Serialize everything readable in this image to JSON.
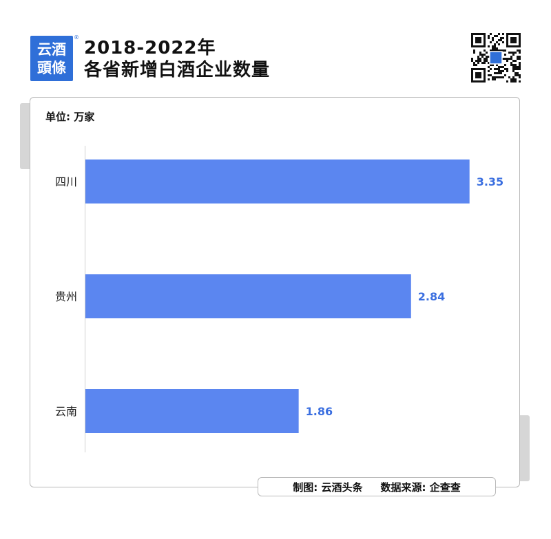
{
  "brand": {
    "logo_line1": "云酒",
    "logo_line2": "頭條",
    "logo_mark": "®",
    "accent_color": "#2f6fd8"
  },
  "header": {
    "title_line1": "2018-2022年",
    "title_line2": "各省新增白酒企业数量",
    "qr_icon": "qr-code-icon"
  },
  "unit_label": "单位: 万家",
  "footer": {
    "credit": "制图: 云酒头条",
    "source": "数据来源: 企查查"
  },
  "chart_data": {
    "type": "bar",
    "orientation": "horizontal",
    "categories": [
      "四川",
      "贵州",
      "云南"
    ],
    "values": [
      3.35,
      2.84,
      1.86
    ],
    "xlim": [
      0,
      3.55
    ],
    "bar_color": "#5b86f0",
    "label_color": "#3b6fe0",
    "grid": false,
    "data_labels": true
  }
}
